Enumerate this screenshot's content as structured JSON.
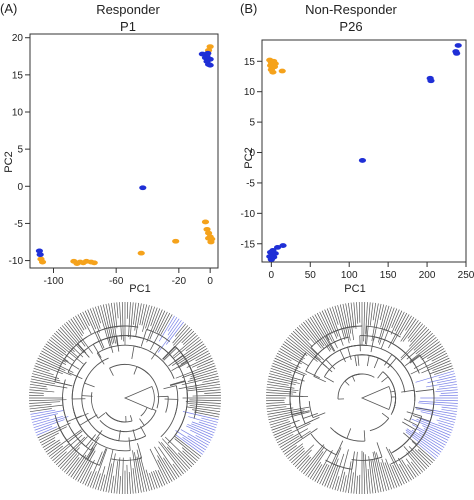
{
  "colors": {
    "orange": "#f5a21b",
    "blue": "#1f2fd6",
    "tree_blue": "#7a82e8",
    "tree_grey": "#555555"
  },
  "panels": [
    {
      "tag": "(A)",
      "group": "Responder",
      "patient": "P1"
    },
    {
      "tag": "(B)",
      "group": "Non-Responder",
      "patient": "P26"
    }
  ],
  "chart_data": [
    {
      "type": "scatter",
      "title": "Responder",
      "subtitle": "P1",
      "xlabel": "PC1",
      "ylabel": "PC2",
      "xlim": [
        -115,
        5
      ],
      "ylim": [
        -11,
        20.5
      ],
      "x_ticks": [
        -100,
        -60,
        -20,
        0
      ],
      "y_ticks": [
        20,
        15,
        10,
        5,
        0,
        -5,
        -10
      ],
      "series": [
        {
          "color": "orange",
          "points": [
            [
              -108,
              -9.8
            ],
            [
              -107,
              -10.2
            ],
            [
              -87,
              -10.1
            ],
            [
              -85,
              -10.4
            ],
            [
              -83,
              -10.2
            ],
            [
              -81,
              -10.3
            ],
            [
              -79,
              -10.1
            ],
            [
              -76,
              -10.2
            ],
            [
              -74,
              -10.3
            ],
            [
              -44,
              -9.0
            ],
            [
              -22,
              -7.4
            ],
            [
              -3,
              -4.8
            ],
            [
              -2,
              -5.8
            ],
            [
              -1,
              -6.3
            ],
            [
              0,
              -6.8
            ],
            [
              1,
              -7.1
            ],
            [
              0.5,
              -7.5
            ],
            [
              -1,
              -7.0
            ],
            [
              0,
              18.8
            ],
            [
              -1,
              18.3
            ]
          ]
        },
        {
          "color": "blue",
          "points": [
            [
              -109,
              -8.7
            ],
            [
              -108.5,
              -9.2
            ],
            [
              -43,
              -0.2
            ],
            [
              -5,
              17.8
            ],
            [
              -3,
              17.3
            ],
            [
              -2,
              16.8
            ],
            [
              -1,
              16.4
            ],
            [
              0,
              17.1
            ],
            [
              -1.5,
              17.9
            ],
            [
              0,
              16.3
            ],
            [
              -2,
              17.5
            ]
          ]
        }
      ]
    },
    {
      "type": "scatter",
      "title": "Non-Responder",
      "subtitle": "P26",
      "xlabel": "PC1",
      "ylabel": "PC2",
      "xlim": [
        -12,
        250
      ],
      "ylim": [
        -18,
        18.5
      ],
      "x_ticks": [
        0,
        50,
        100,
        150,
        200,
        250
      ],
      "y_ticks": [
        15,
        10,
        5,
        0,
        -5,
        -10,
        -15
      ],
      "series": [
        {
          "color": "orange",
          "points": [
            [
              -2,
              15.2
            ],
            [
              0,
              14.8
            ],
            [
              2,
              14.5
            ],
            [
              4,
              14.1
            ],
            [
              -1,
              14.3
            ],
            [
              1,
              13.9
            ],
            [
              3,
              15.0
            ],
            [
              5,
              14.6
            ],
            [
              0,
              13.6
            ],
            [
              2,
              13.2
            ],
            [
              14,
              13.4
            ]
          ]
        },
        {
          "color": "blue",
          "points": [
            [
              240,
              17.6
            ],
            [
              237,
              16.6
            ],
            [
              238,
              16.3
            ],
            [
              204,
              12.2
            ],
            [
              205,
              11.8
            ],
            [
              117,
              -1.3
            ],
            [
              15,
              -15.3
            ],
            [
              8,
              -15.6
            ],
            [
              -1,
              -16.4
            ],
            [
              1,
              -16.9
            ],
            [
              3,
              -17.2
            ],
            [
              0,
              -17.6
            ],
            [
              5,
              -16.6
            ],
            [
              2,
              -16.1
            ],
            [
              -2,
              -17.1
            ]
          ]
        }
      ]
    }
  ]
}
